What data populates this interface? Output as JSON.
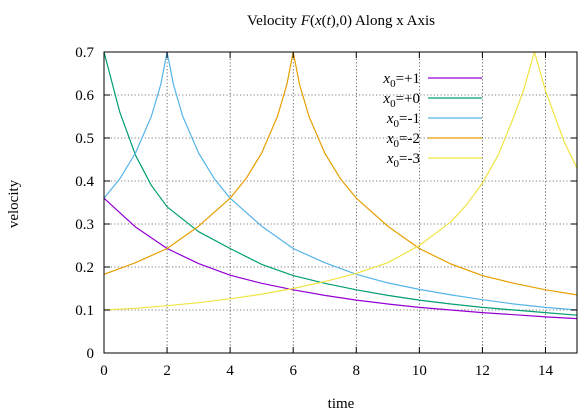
{
  "chart_data": {
    "type": "line",
    "title": {
      "prefix": "Velocity ",
      "function_name": "F",
      "paren_open": "(",
      "var_x": "x",
      "var_open": "(",
      "var_t": "t",
      "tail": "),0) Along x Axis"
    },
    "xlabel": "time",
    "ylabel": "velocity",
    "xlim": [
      0,
      15
    ],
    "ylim": [
      0,
      0.7
    ],
    "x_ticks": [
      0,
      2,
      4,
      6,
      8,
      10,
      12,
      14
    ],
    "y_ticks": [
      0,
      0.1,
      0.2,
      0.3,
      0.4,
      0.5,
      0.6,
      0.7
    ],
    "x_tick_labels": [
      "0",
      "2",
      "4",
      "6",
      "8",
      "10",
      "12",
      "14"
    ],
    "y_tick_labels": [
      "0",
      "0.1",
      "0.2",
      "0.3",
      "0.4",
      "0.5",
      "0.6",
      "0.7"
    ],
    "grid": true,
    "legend_position": "top-right",
    "series": [
      {
        "name": "x0=+1",
        "label_var": "x",
        "label_sub": "0",
        "label_rest": "=+1",
        "color": "#9400d3",
        "x": [
          0,
          1,
          2,
          3,
          4,
          5,
          6,
          7,
          8,
          9,
          10,
          11,
          12,
          13,
          14,
          15
        ],
        "y": [
          0.36,
          0.293,
          0.243,
          0.208,
          0.181,
          0.162,
          0.147,
          0.134,
          0.123,
          0.114,
          0.106,
          0.1,
          0.094,
          0.089,
          0.084,
          0.08
        ]
      },
      {
        "name": "x0=+0",
        "label_var": "x",
        "label_sub": "0",
        "label_rest": "=+0",
        "color": "#009e73",
        "x": [
          0,
          0.5,
          1,
          1.5,
          2,
          3,
          4,
          5,
          6,
          7,
          8,
          9,
          10,
          11,
          12,
          13,
          14,
          15
        ],
        "y": [
          0.7,
          0.56,
          0.46,
          0.39,
          0.34,
          0.282,
          0.243,
          0.206,
          0.18,
          0.162,
          0.147,
          0.134,
          0.123,
          0.114,
          0.106,
          0.1,
          0.094,
          0.088
        ]
      },
      {
        "name": "x0=-1",
        "label_var": "x",
        "label_sub": "0",
        "label_rest": "=-1",
        "color": "#56b4e9",
        "x": [
          0,
          0.5,
          1,
          1.5,
          1.8,
          2,
          2.2,
          2.5,
          3,
          3.5,
          4,
          5,
          6,
          7,
          8,
          9,
          10,
          11,
          12,
          13,
          14,
          15
        ],
        "y": [
          0.36,
          0.405,
          0.465,
          0.55,
          0.625,
          0.7,
          0.625,
          0.55,
          0.465,
          0.405,
          0.36,
          0.295,
          0.243,
          0.21,
          0.183,
          0.163,
          0.148,
          0.135,
          0.124,
          0.114,
          0.106,
          0.1
        ]
      },
      {
        "name": "x0=-2",
        "label_var": "x",
        "label_sub": "0",
        "label_rest": "=-2",
        "color": "#e69f00",
        "x": [
          0,
          1,
          2,
          3,
          4,
          4.5,
          5,
          5.5,
          5.8,
          6,
          6.2,
          6.5,
          7,
          7.5,
          8,
          9,
          10,
          11,
          12,
          13,
          14,
          15
        ],
        "y": [
          0.183,
          0.21,
          0.243,
          0.295,
          0.36,
          0.405,
          0.465,
          0.55,
          0.625,
          0.7,
          0.625,
          0.55,
          0.465,
          0.405,
          0.36,
          0.295,
          0.243,
          0.207,
          0.18,
          0.162,
          0.147,
          0.135
        ]
      },
      {
        "name": "x0=-3",
        "label_var": "x",
        "label_sub": "0",
        "label_rest": "=-3",
        "color": "#f0e442",
        "x": [
          0,
          1,
          2,
          3,
          4,
          5,
          6,
          7,
          8,
          9,
          10,
          11,
          11.5,
          12,
          12.5,
          13,
          13.3,
          13.65,
          14,
          14.3,
          14.6,
          15
        ],
        "y": [
          0.1,
          0.104,
          0.11,
          0.117,
          0.126,
          0.137,
          0.15,
          0.166,
          0.185,
          0.21,
          0.25,
          0.305,
          0.345,
          0.395,
          0.46,
          0.55,
          0.61,
          0.7,
          0.61,
          0.55,
          0.49,
          0.43
        ]
      }
    ]
  }
}
